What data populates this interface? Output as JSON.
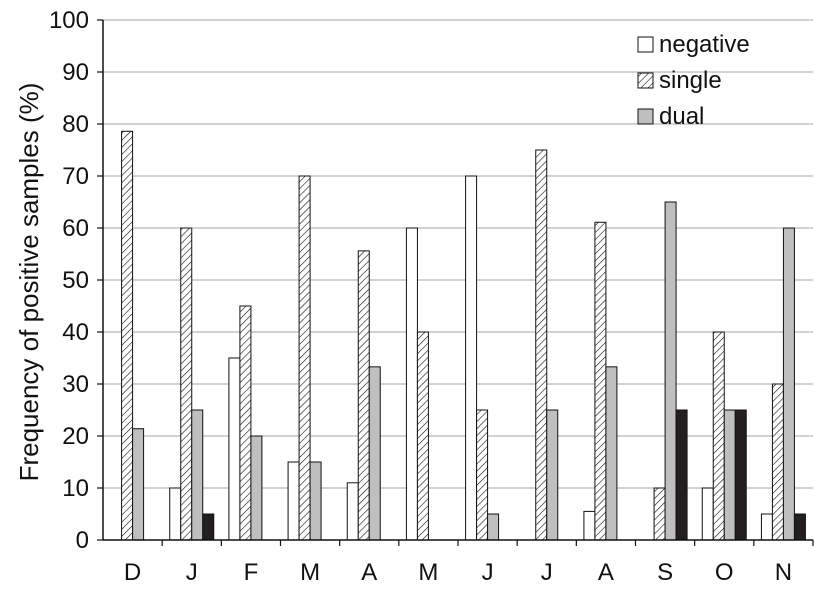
{
  "chart_data": {
    "type": "bar",
    "title": "",
    "xlabel": "",
    "ylabel": "Frequency of positive samples (%)",
    "ylim": [
      0,
      100
    ],
    "yticks": [
      0,
      10,
      20,
      30,
      40,
      50,
      60,
      70,
      80,
      90,
      100
    ],
    "grid": true,
    "legend_position": "top-right",
    "categories": [
      "D",
      "J",
      "F",
      "M",
      "A",
      "M",
      "J",
      "J",
      "A",
      "S",
      "O",
      "N"
    ],
    "series": [
      {
        "name": "negative",
        "fill": "#ffffff",
        "values": [
          0,
          10,
          35,
          15,
          11,
          60,
          70,
          0,
          5.5,
          0,
          10,
          5
        ]
      },
      {
        "name": "single",
        "fill": "hatch",
        "values": [
          78.6,
          60,
          45,
          70,
          55.6,
          40,
          25,
          75,
          61.1,
          10,
          40,
          30
        ]
      },
      {
        "name": "dual",
        "fill": "#bfbfbf",
        "values": [
          21.4,
          25,
          20,
          15,
          33.3,
          0,
          5,
          25,
          33.3,
          65,
          25,
          60
        ]
      },
      {
        "name": "",
        "fill": "#231f20",
        "values": [
          0,
          5,
          0,
          0,
          0,
          0,
          0,
          0,
          0,
          25,
          25,
          5
        ]
      }
    ]
  }
}
